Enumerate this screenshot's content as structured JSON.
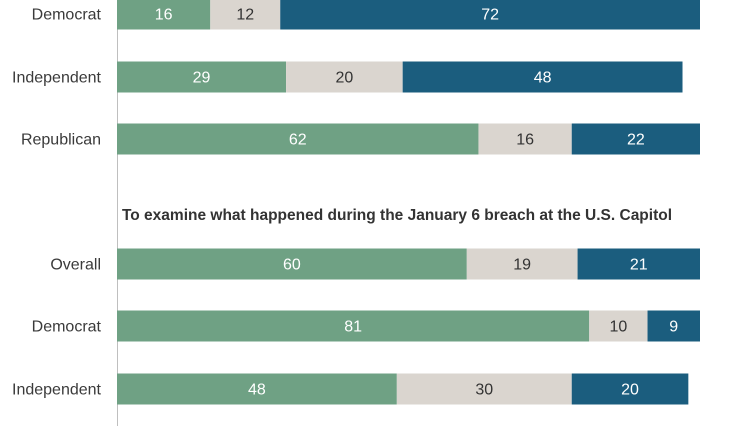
{
  "colors": {
    "segment_1": "#6fa184",
    "segment_2": "#dad5cf",
    "segment_3": "#1b5d7e",
    "label_light": "#ffffff",
    "label_dark": "#333333",
    "axis": "#bfbfbf"
  },
  "chart_data": [
    {
      "type": "bar",
      "orientation": "horizontal",
      "stacked": true,
      "title": "",
      "categories": [
        "Democrat",
        "Independent",
        "Republican"
      ],
      "series": [
        {
          "values": [
            16,
            29,
            62
          ]
        },
        {
          "values": [
            12,
            20,
            16
          ]
        },
        {
          "values": [
            72,
            48,
            22
          ]
        }
      ],
      "xlim": [
        0,
        100
      ]
    },
    {
      "type": "bar",
      "orientation": "horizontal",
      "stacked": true,
      "title": "To examine what happened during the January 6 breach at the U.S. Capitol",
      "categories": [
        "Overall",
        "Democrat",
        "Independent"
      ],
      "series": [
        {
          "values": [
            60,
            81,
            48
          ]
        },
        {
          "values": [
            19,
            10,
            30
          ]
        },
        {
          "values": [
            21,
            9,
            20
          ]
        }
      ],
      "xlim": [
        0,
        100
      ]
    }
  ]
}
